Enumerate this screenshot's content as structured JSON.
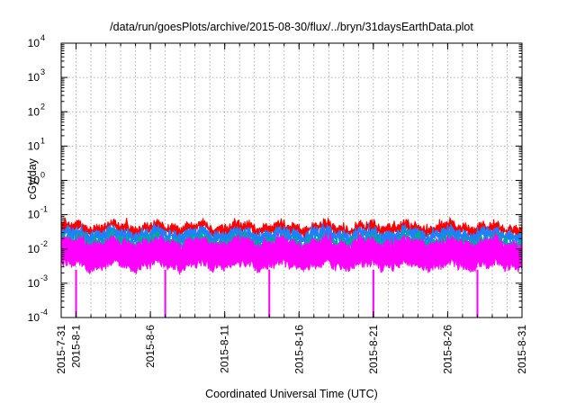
{
  "chart_data": {
    "type": "line",
    "title": "/data/run/goesPlots/archive/2015-08-30/flux/../bryn/31daysEarthData.plot",
    "xlabel": "Coordinated Universal Time (UTC)",
    "ylabel": "cGy/day",
    "x_range": [
      "2015-07-31",
      "2015-08-31"
    ],
    "y_scale": "log",
    "ylim": [
      0.0001,
      10000
    ],
    "grid": true,
    "x_ticks": [
      "2015-7-31",
      "2015-8-1",
      "2015-8-6",
      "2015-8-11",
      "2015-8-16",
      "2015-8-21",
      "2015-8-26",
      "2015-8-31"
    ],
    "y_ticks": [
      {
        "base": "10",
        "exp": "-4",
        "value": 0.0001
      },
      {
        "base": "10",
        "exp": "-3",
        "value": 0.001
      },
      {
        "base": "10",
        "exp": "-2",
        "value": 0.01
      },
      {
        "base": "10",
        "exp": "-1",
        "value": 0.1
      },
      {
        "base": "10",
        "exp": "0",
        "value": 1
      },
      {
        "base": "10",
        "exp": "1",
        "value": 10
      },
      {
        "base": "10",
        "exp": "2",
        "value": 100
      },
      {
        "base": "10",
        "exp": "3",
        "value": 1000
      },
      {
        "base": "10",
        "exp": "4",
        "value": 10000
      }
    ],
    "series": [
      {
        "color": "#ff0000",
        "typical_low": 0.025,
        "typical_high": 0.06
      },
      {
        "color": "#1e7fff",
        "typical_low": 0.015,
        "typical_high": 0.04
      },
      {
        "color": "#00a8a0",
        "typical_low": 0.01,
        "typical_high": 0.025
      },
      {
        "color": "#ff00ff",
        "typical_low": 0.0025,
        "typical_high": 0.02,
        "dropouts": [
          "2015-08-01",
          "2015-08-07",
          "2015-08-14",
          "2015-08-21",
          "2015-08-28"
        ]
      }
    ]
  }
}
